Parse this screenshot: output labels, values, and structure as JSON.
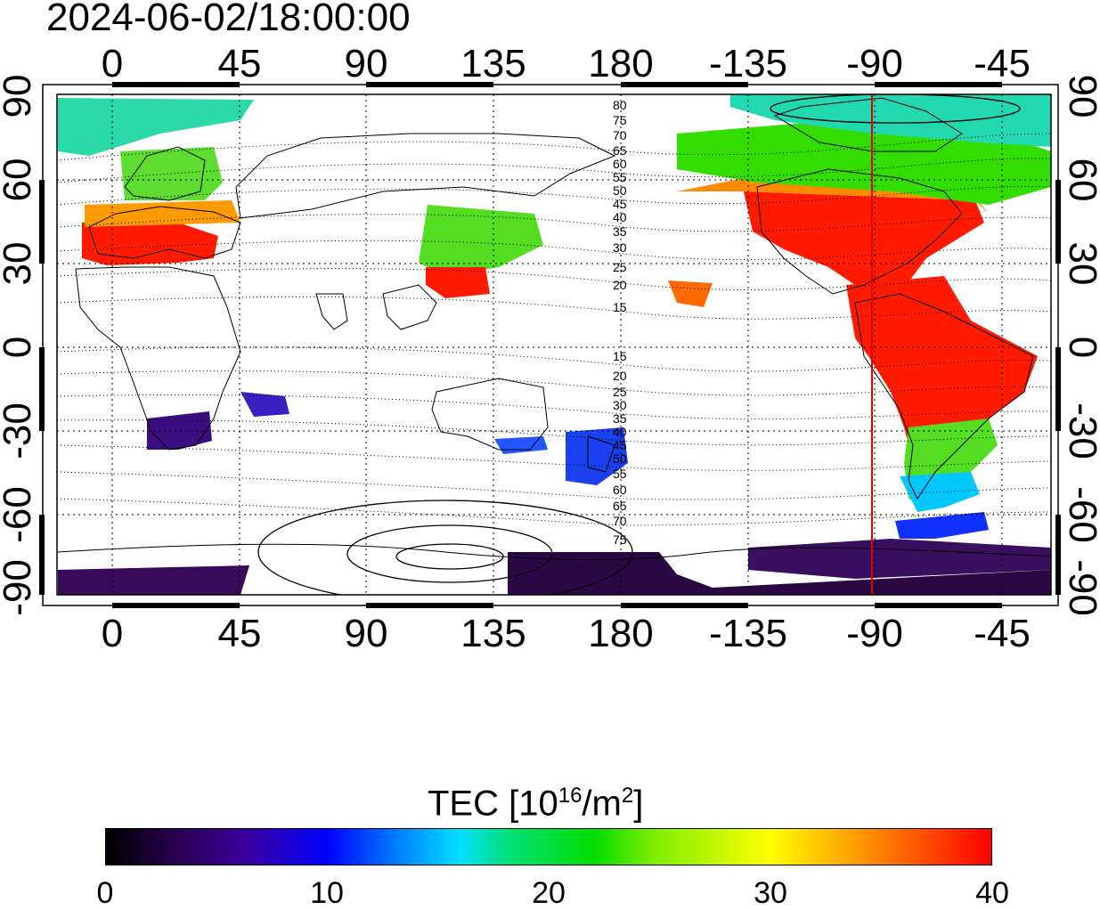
{
  "timestamp": "2024-06-02/18:00:00",
  "map": {
    "top_lon_ticks": [
      "0",
      "45",
      "90",
      "135",
      "180",
      "-135",
      "-90",
      "-45"
    ],
    "bottom_lon_ticks": [
      "0",
      "45",
      "90",
      "135",
      "180",
      "-135",
      "-90",
      "-45"
    ],
    "left_lat_ticks": [
      "90",
      "60",
      "30",
      "0",
      "-30",
      "-60",
      "-90"
    ],
    "right_lat_ticks": [
      "90",
      "60",
      "30",
      "0",
      "-30",
      "-60",
      "-90"
    ],
    "contour_labels": [
      "80",
      "75",
      "70",
      "65",
      "60",
      "55",
      "50",
      "45",
      "40",
      "35",
      "30",
      "25",
      "20",
      "15",
      "15",
      "20",
      "25",
      "30",
      "35",
      "40",
      "45",
      "50",
      "55",
      "60",
      "65",
      "70",
      "75"
    ],
    "meridian_marker_lon": -90,
    "meridian_marker_color": "#e00000",
    "tec_colors": {
      "low": "#2a0050",
      "mid_low": "#0000ff",
      "mid": "#00e0ff",
      "mid_high": "#00dd00",
      "high_mid": "#ffff00",
      "high": "#ff0000"
    }
  },
  "colorbar": {
    "title_main": "TEC  [10",
    "title_sup1": "16",
    "title_mid": "/m",
    "title_sup2": "2",
    "title_end": "]",
    "labels": [
      "0",
      "10",
      "20",
      "30",
      "40"
    ]
  }
}
